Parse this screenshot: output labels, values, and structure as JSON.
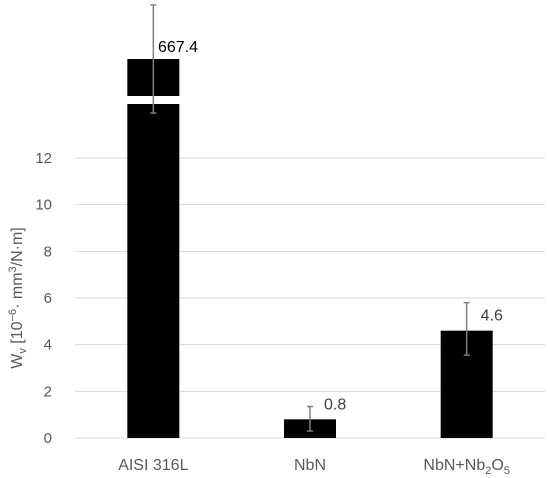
{
  "chart_data": {
    "type": "bar",
    "categories": [
      "AISI 316L",
      "NbN",
      "NbN+Nb2O5"
    ],
    "category_display": [
      {
        "main": "AISI 316L"
      },
      {
        "main": "NbN"
      },
      {
        "main": "NbN+Nb",
        "sub1": "2",
        "mid": "O",
        "sub2": "5"
      }
    ],
    "values": [
      667.4,
      0.8,
      4.6
    ],
    "data_labels": [
      "667.4",
      "0.8",
      "4.6"
    ],
    "error_bars": [
      {
        "low": null,
        "high": null
      },
      {
        "low": 0.3,
        "high": 1.35
      },
      {
        "low": 3.55,
        "high": 5.8
      }
    ],
    "axis_break": true,
    "ylim": [
      0,
      14
    ],
    "yticks": [
      "0",
      "2",
      "4",
      "6",
      "8",
      "10",
      "12"
    ],
    "ylabel": {
      "w": "W",
      "w_sub": "v",
      "bracket_open": " [10",
      "exp": "−6",
      "unit1": "· mm",
      "unit_sup": "3",
      "unit2": "/N·m]"
    },
    "grid": true,
    "colors": {
      "bar": "#000000",
      "grid": "#d9d9d9",
      "error": "#7f7f7f",
      "text": "#595959"
    }
  }
}
